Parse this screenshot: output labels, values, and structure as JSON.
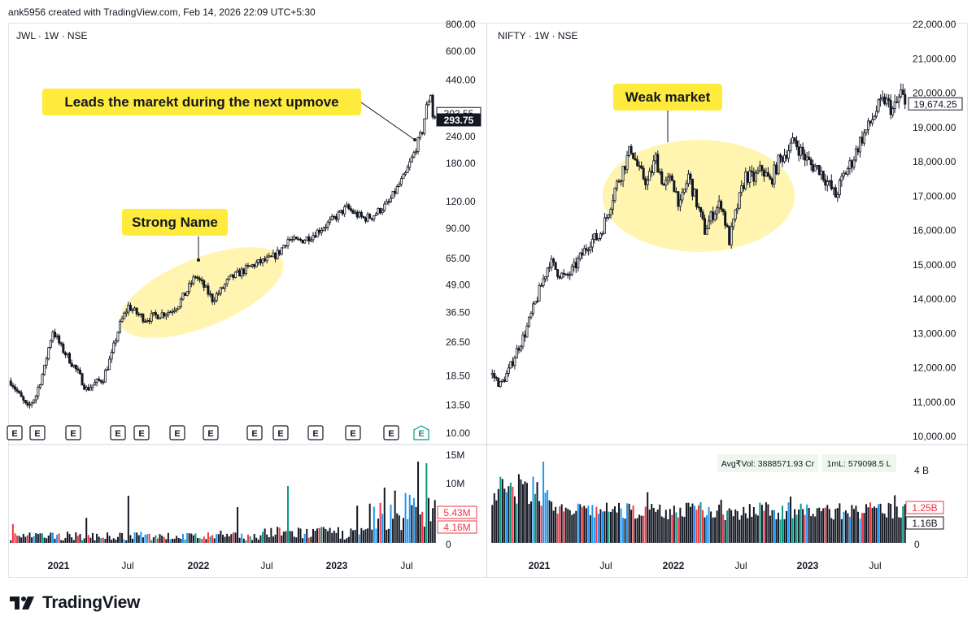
{
  "header": {
    "text": "ank5956 created with TradingView.com, Feb 14, 2026 22:09 UTC+5:30"
  },
  "footer": {
    "brand": "TradingView"
  },
  "colors": {
    "up": "#089981",
    "down": "#f23645",
    "volume_up": "#2196f3",
    "highlight_fill": "#fff3a3",
    "callout_bg": "#ffeb3b"
  },
  "chart_data": [
    {
      "type": "candlestick",
      "title": "JWL · 1W · NSE",
      "scale": "log",
      "ylim": [
        10,
        800
      ],
      "y_ticks": [
        "800.00",
        "600.00",
        "440.00",
        "303.55",
        "240.00",
        "180.00",
        "120.00",
        "90.00",
        "65.00",
        "49.00",
        "36.50",
        "26.50",
        "18.50",
        "13.50",
        "10.00"
      ],
      "y_tick_values": [
        800,
        600,
        440,
        303.55,
        240,
        180,
        120,
        90,
        65,
        49,
        36.5,
        26.5,
        18.5,
        13.5,
        10
      ],
      "price_labels": [
        {
          "text": "303.55",
          "value": 303.55,
          "style": "outline"
        },
        {
          "text": "293.75",
          "value": 293.75,
          "style": "filled"
        }
      ],
      "x_ticks": [
        "2021",
        "Jul",
        "2022",
        "Jul",
        "2023",
        "Jul"
      ],
      "x_ticks_bold": [
        true,
        false,
        true,
        false,
        true,
        false
      ],
      "path": [
        [
          0,
          17.5
        ],
        [
          4,
          15
        ],
        [
          8,
          13
        ],
        [
          12,
          15
        ],
        [
          16,
          20
        ],
        [
          20,
          30
        ],
        [
          24,
          25
        ],
        [
          28,
          22
        ],
        [
          32,
          19
        ],
        [
          36,
          16
        ],
        [
          40,
          17
        ],
        [
          44,
          18
        ],
        [
          48,
          23
        ],
        [
          52,
          32
        ],
        [
          56,
          39
        ],
        [
          60,
          36
        ],
        [
          64,
          34
        ],
        [
          68,
          35
        ],
        [
          72,
          36
        ],
        [
          76,
          37
        ],
        [
          80,
          40
        ],
        [
          84,
          46
        ],
        [
          88,
          54
        ],
        [
          92,
          48
        ],
        [
          96,
          42
        ],
        [
          100,
          46
        ],
        [
          104,
          52
        ],
        [
          108,
          55
        ],
        [
          112,
          58
        ],
        [
          116,
          61
        ],
        [
          120,
          63
        ],
        [
          124,
          65
        ],
        [
          128,
          70
        ],
        [
          132,
          80
        ],
        [
          136,
          78
        ],
        [
          140,
          80
        ],
        [
          144,
          84
        ],
        [
          148,
          90
        ],
        [
          152,
          96
        ],
        [
          156,
          104
        ],
        [
          160,
          112
        ],
        [
          164,
          105
        ],
        [
          168,
          100
        ],
        [
          172,
          102
        ],
        [
          176,
          110
        ],
        [
          180,
          118
        ],
        [
          184,
          138
        ],
        [
          188,
          160
        ],
        [
          192,
          200
        ],
        [
          196,
          255
        ],
        [
          198,
          330
        ],
        [
          200,
          380
        ],
        [
          201,
          300
        ],
        [
          202,
          293.75
        ]
      ],
      "earnings_count": 13,
      "volume": {
        "axis_ticks": [
          "15M",
          "10M",
          "0"
        ],
        "labels": [
          {
            "text": "5.43M",
            "value": 5.43
          },
          {
            "text": "4.16M",
            "value": 4.16
          }
        ]
      },
      "annotations": [
        {
          "label": "Strong Name",
          "type": "ellipse-highlight"
        },
        {
          "label": "Leads the marekt during the next upmove",
          "type": "callout"
        }
      ]
    },
    {
      "type": "candlestick",
      "title": "NIFTY · 1W · NSE",
      "scale": "linear",
      "ylim": [
        10000,
        22000
      ],
      "y_ticks": [
        "22,000.00",
        "21,000.00",
        "20,000.00",
        "19,000.00",
        "18,000.00",
        "17,000.00",
        "16,000.00",
        "15,000.00",
        "14,000.00",
        "13,000.00",
        "12,000.00",
        "11,000.00",
        "10,000.00"
      ],
      "y_tick_values": [
        22000,
        21000,
        20000,
        19000,
        18000,
        17000,
        16000,
        15000,
        14000,
        13000,
        12000,
        11000,
        10000
      ],
      "price_labels": [
        {
          "text": "19,674.25",
          "value": 19674.25,
          "style": "outline"
        }
      ],
      "x_ticks": [
        "2021",
        "Jul",
        "2022",
        "Jul",
        "2023",
        "Jul"
      ],
      "x_ticks_bold": [
        true,
        false,
        true,
        false,
        true,
        false
      ],
      "path": [
        [
          0,
          11800
        ],
        [
          4,
          11500
        ],
        [
          8,
          11900
        ],
        [
          12,
          12500
        ],
        [
          16,
          13000
        ],
        [
          20,
          13700
        ],
        [
          24,
          14400
        ],
        [
          28,
          15100
        ],
        [
          32,
          14800
        ],
        [
          36,
          14600
        ],
        [
          40,
          14900
        ],
        [
          44,
          15300
        ],
        [
          48,
          15700
        ],
        [
          52,
          15800
        ],
        [
          56,
          16400
        ],
        [
          60,
          17200
        ],
        [
          64,
          17800
        ],
        [
          68,
          18400
        ],
        [
          72,
          17700
        ],
        [
          76,
          17400
        ],
        [
          80,
          18100
        ],
        [
          84,
          17300
        ],
        [
          88,
          17500
        ],
        [
          92,
          16700
        ],
        [
          96,
          17600
        ],
        [
          100,
          16800
        ],
        [
          104,
          16000
        ],
        [
          108,
          16500
        ],
        [
          112,
          16800
        ],
        [
          116,
          15700
        ],
        [
          120,
          16700
        ],
        [
          124,
          17600
        ],
        [
          128,
          17500
        ],
        [
          132,
          17800
        ],
        [
          136,
          17400
        ],
        [
          140,
          18000
        ],
        [
          144,
          18300
        ],
        [
          148,
          18600
        ],
        [
          152,
          18200
        ],
        [
          156,
          17900
        ],
        [
          160,
          17800
        ],
        [
          164,
          17400
        ],
        [
          168,
          17000
        ],
        [
          172,
          17600
        ],
        [
          176,
          18000
        ],
        [
          180,
          18600
        ],
        [
          184,
          19000
        ],
        [
          188,
          19500
        ],
        [
          192,
          19800
        ],
        [
          196,
          19500
        ],
        [
          198,
          19700
        ],
        [
          200,
          20000
        ],
        [
          202,
          19674.25
        ]
      ],
      "volume": {
        "axis_ticks": [
          "4 B",
          "0"
        ],
        "labels": [
          {
            "text": "1.25B",
            "value": 1.25
          },
          {
            "text": "1.16B",
            "value": 1.16
          }
        ]
      },
      "volume_pills": [
        {
          "text": "Avg₹Vol: 3888571.93 Cr"
        },
        {
          "text": "1mL: 579098.5 L"
        }
      ],
      "annotations": [
        {
          "label": "Weak market",
          "type": "ellipse-highlight"
        }
      ]
    }
  ]
}
